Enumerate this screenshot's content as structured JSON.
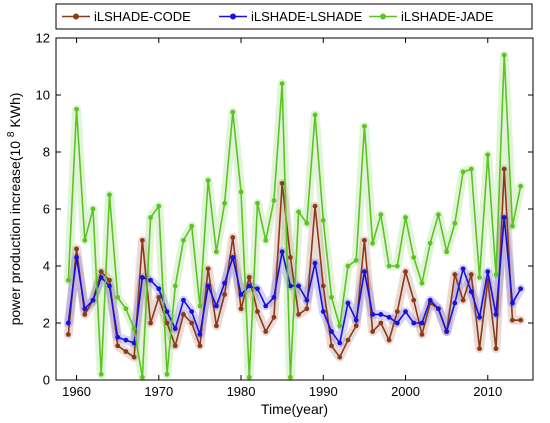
{
  "chart_data": {
    "type": "line",
    "xlabel": "Time(year)",
    "ylabel": {
      "main": "power production increase(10",
      "exp": "8",
      "unit": " KWh)"
    },
    "xlim": [
      1957.5,
      2015.5
    ],
    "ylim": [
      0,
      12
    ],
    "xticks": [
      1960,
      1970,
      1980,
      1990,
      2000,
      2010
    ],
    "yticks": [
      0,
      2,
      4,
      6,
      8,
      10,
      12
    ],
    "grid": false,
    "legend": "top",
    "x": [
      1959,
      1960,
      1961,
      1962,
      1963,
      1964,
      1965,
      1966,
      1967,
      1968,
      1969,
      1970,
      1971,
      1972,
      1973,
      1974,
      1975,
      1976,
      1977,
      1978,
      1979,
      1980,
      1981,
      1982,
      1983,
      1984,
      1985,
      1986,
      1987,
      1988,
      1989,
      1990,
      1991,
      1992,
      1993,
      1994,
      1995,
      1996,
      1997,
      1998,
      1999,
      2000,
      2001,
      2002,
      2003,
      2004,
      2005,
      2006,
      2007,
      2008,
      2009,
      2010,
      2011,
      2012,
      2013,
      2014
    ],
    "series": [
      {
        "name": "iLSHADE-CODE",
        "color": "#8B3A1A",
        "values": [
          1.6,
          4.6,
          2.3,
          2.8,
          3.8,
          3.5,
          1.2,
          1.0,
          0.8,
          4.9,
          2.0,
          2.9,
          2.0,
          1.2,
          2.3,
          2.0,
          1.2,
          3.9,
          1.9,
          3.0,
          5.0,
          2.5,
          3.6,
          2.4,
          1.7,
          2.2,
          6.9,
          4.3,
          2.3,
          2.5,
          6.1,
          3.3,
          1.2,
          0.8,
          1.4,
          1.9,
          4.9,
          1.7,
          2.0,
          1.4,
          2.4,
          3.8,
          2.8,
          1.6,
          2.7,
          2.5,
          1.7,
          3.7,
          2.8,
          3.7,
          1.1,
          3.5,
          1.1,
          7.4,
          2.1,
          2.1
        ]
      },
      {
        "name": "iLSHADE-LSHADE",
        "color": "#1A10D8",
        "values": [
          2.0,
          4.3,
          2.5,
          2.8,
          3.6,
          3.3,
          1.5,
          1.4,
          1.3,
          3.6,
          3.5,
          3.2,
          2.4,
          1.8,
          2.8,
          2.4,
          1.6,
          3.3,
          2.6,
          3.4,
          4.3,
          3.0,
          3.3,
          3.2,
          2.6,
          2.9,
          4.5,
          3.3,
          3.3,
          2.8,
          4.1,
          2.4,
          1.7,
          1.3,
          2.7,
          2.1,
          3.8,
          2.3,
          2.3,
          2.2,
          2.0,
          2.4,
          2.0,
          2.0,
          2.8,
          2.5,
          1.7,
          2.7,
          3.9,
          3.1,
          2.2,
          3.8,
          2.3,
          5.7,
          2.7,
          3.2
        ]
      },
      {
        "name": "iLSHADE-JADE",
        "color": "#5CC325",
        "values": [
          3.5,
          9.5,
          4.9,
          6.0,
          0.2,
          6.5,
          2.9,
          2.5,
          1.8,
          0.1,
          5.7,
          6.1,
          0.2,
          3.3,
          4.9,
          5.4,
          2.6,
          7.0,
          4.5,
          6.2,
          9.4,
          6.6,
          0.1,
          6.2,
          4.9,
          6.3,
          10.4,
          0.1,
          5.9,
          5.5,
          9.3,
          5.6,
          2.9,
          1.9,
          4.0,
          4.2,
          8.9,
          4.8,
          5.8,
          4.0,
          4.0,
          5.7,
          4.3,
          3.4,
          4.8,
          5.8,
          4.5,
          5.5,
          7.3,
          7.4,
          3.6,
          7.9,
          3.7,
          11.4,
          5.4,
          6.8
        ]
      }
    ]
  }
}
